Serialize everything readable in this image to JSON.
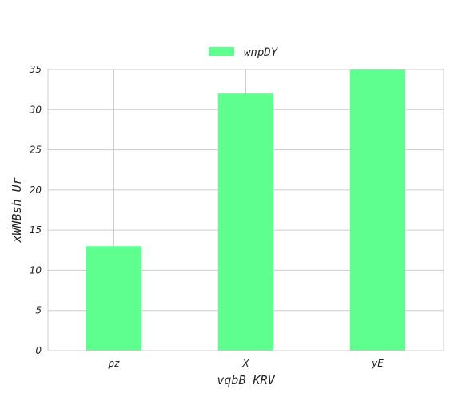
{
  "chart_data": {
    "type": "bar",
    "categories": [
      "pz",
      "X",
      "yE"
    ],
    "series": [
      {
        "name": "wnpDY",
        "values": [
          13,
          32,
          35
        ]
      }
    ],
    "xlabel": "vqbB KRV",
    "ylabel": "xWNBsh Ur",
    "ylim": [
      0,
      35
    ],
    "yticks": [
      0,
      5,
      10,
      15,
      20,
      25,
      30,
      35
    ],
    "grid": true,
    "legend": "top-center",
    "colors": {
      "bar": "#5eff8f",
      "grid": "#cccccc",
      "frame": "#cccccc"
    }
  }
}
